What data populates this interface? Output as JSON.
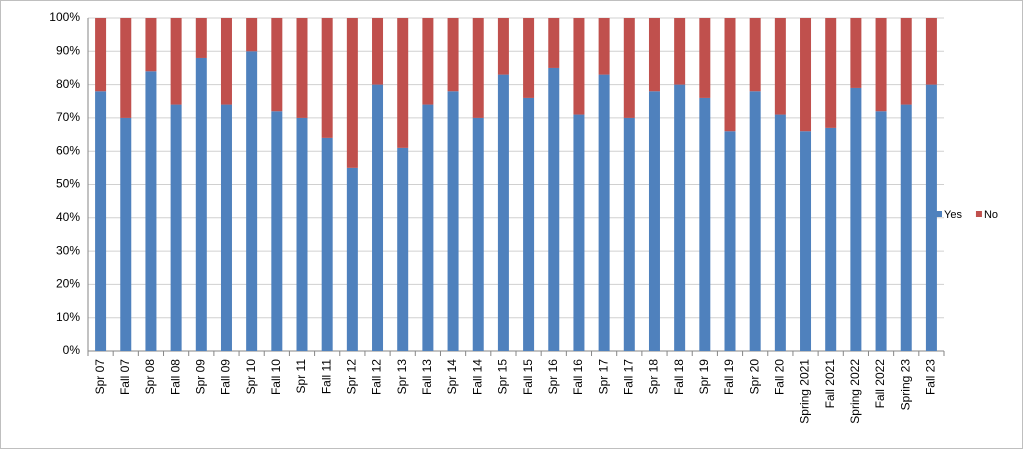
{
  "chart_data": {
    "type": "bar",
    "stacked": true,
    "percent": true,
    "categories": [
      "Spr 07",
      "Fall 07",
      "Spr 08",
      "Fall 08",
      "Spr 09",
      "Fall 09",
      "Spr 10",
      "Fall 10",
      "Spr 11",
      "Fall 11",
      "Spr 12",
      "Fall 12",
      "Spr 13",
      "Fall 13",
      "Spr 14",
      "Fall 14",
      "Spr 15",
      "Fall 15",
      "Spr 16",
      "Fall 16",
      "Spr 17",
      "Fall 17",
      "Spr 18",
      "Fall 18",
      "Spr 19",
      "Fall 19",
      "Spr 20",
      "Fall 20",
      "Spring 2021",
      "Fall 2021",
      "Spring 2022",
      "Fall 2022",
      "Spring 23",
      "Fall 23"
    ],
    "series": [
      {
        "name": "Yes",
        "color": "#4f81bd",
        "values": [
          78,
          70,
          84,
          74,
          88,
          74,
          90,
          72,
          70,
          64,
          55,
          80,
          61,
          74,
          78,
          70,
          83,
          76,
          85,
          71,
          83,
          70,
          78,
          80,
          76,
          66,
          78,
          71,
          66,
          67,
          79,
          72,
          74,
          80
        ]
      },
      {
        "name": "No",
        "color": "#c0504d",
        "values": [
          22,
          30,
          16,
          26,
          12,
          26,
          10,
          28,
          30,
          36,
          45,
          20,
          39,
          26,
          22,
          30,
          17,
          24,
          15,
          29,
          17,
          30,
          22,
          20,
          24,
          34,
          22,
          29,
          34,
          33,
          21,
          28,
          26,
          20
        ]
      }
    ],
    "ylim": [
      0,
      100
    ],
    "yticks": [
      {
        "value": 0,
        "label": "0%"
      },
      {
        "value": 10,
        "label": "10%"
      },
      {
        "value": 20,
        "label": "20%"
      },
      {
        "value": 30,
        "label": "30%"
      },
      {
        "value": 40,
        "label": "40%"
      },
      {
        "value": 50,
        "label": "50%"
      },
      {
        "value": 60,
        "label": "60%"
      },
      {
        "value": 70,
        "label": "70%"
      },
      {
        "value": 80,
        "label": "80%"
      },
      {
        "value": 90,
        "label": "90%"
      },
      {
        "value": 100,
        "label": "100%"
      }
    ],
    "grid": true,
    "legend": "right"
  }
}
